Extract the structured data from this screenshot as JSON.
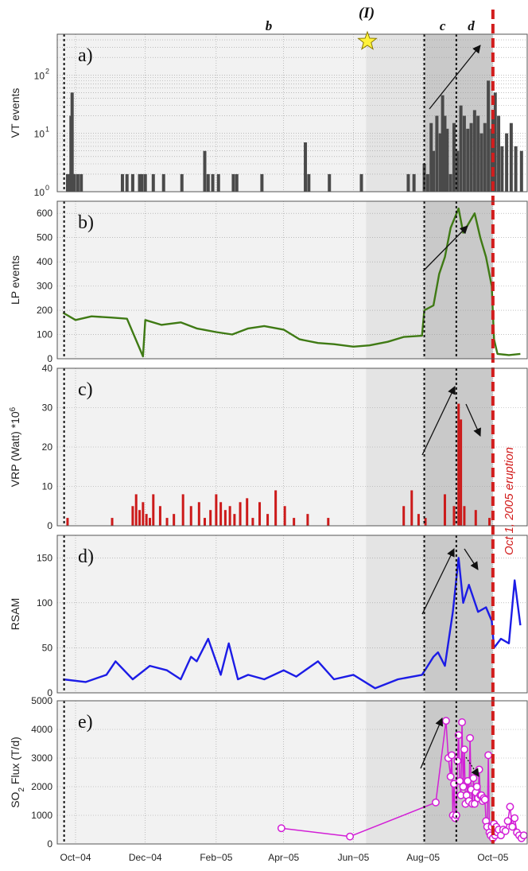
{
  "colors": {
    "vt": "#4a4a4a",
    "lp": "#3f7a14",
    "vrp": "#cc1a1a",
    "rsam": "#1c1ce6",
    "so2": "#d21fd6",
    "eruption": "#d21d1d",
    "shade_light": "#f2f2f2",
    "shade_mid": "#e4e4e4",
    "shade_dark": "#c9c9c9"
  },
  "annotations": {
    "phase_b": "b",
    "phase_c": "c",
    "phase_d": "d",
    "event_I": "(I)",
    "eruption_label": "Oct 1, 2005 eruption",
    "star_icon": "star-icon"
  },
  "chart_data": [
    {
      "type": "bar",
      "panel_label": "a)",
      "ylabel": "VT events",
      "yscale": "log",
      "ylim": [
        1,
        500
      ],
      "yticks": [
        "10",
        "10",
        "10"
      ],
      "ytick_exps": [
        "0",
        "1",
        "2"
      ],
      "x": [
        "2004-09-24",
        "2004-09-26",
        "2004-09-27",
        "2004-09-28",
        "2004-09-29",
        "2004-09-30",
        "2004-10-03",
        "2004-10-06",
        "2004-11-11",
        "2004-11-15",
        "2004-11-20",
        "2004-11-26",
        "2004-11-28",
        "2004-12-01",
        "2004-12-08",
        "2004-12-17",
        "2005-01-02",
        "2005-01-22",
        "2005-01-25",
        "2005-01-29",
        "2005-02-03",
        "2005-02-16",
        "2005-02-19",
        "2005-03-13",
        "2005-04-20",
        "2005-04-23",
        "2005-05-11",
        "2005-06-08",
        "2005-07-19",
        "2005-07-24",
        "2005-08-02",
        "2005-08-05",
        "2005-08-08",
        "2005-08-10",
        "2005-08-13",
        "2005-08-16",
        "2005-08-18",
        "2005-08-20",
        "2005-08-22",
        "2005-08-25",
        "2005-08-28",
        "2005-08-31",
        "2005-09-03",
        "2005-09-06",
        "2005-09-09",
        "2005-09-12",
        "2005-09-15",
        "2005-09-18",
        "2005-09-21",
        "2005-09-24",
        "2005-09-27",
        "2005-09-30",
        "2005-10-01",
        "2005-10-03",
        "2005-10-06",
        "2005-10-09",
        "2005-10-13",
        "2005-10-17",
        "2005-10-21",
        "2005-10-26"
      ],
      "values": [
        2,
        2,
        20,
        50,
        2,
        2,
        2,
        2,
        2,
        2,
        2,
        2,
        2,
        2,
        2,
        2,
        2,
        5,
        2,
        2,
        2,
        2,
        2,
        2,
        7,
        2,
        2,
        2,
        2,
        2,
        3,
        2,
        15,
        5,
        20,
        10,
        45,
        20,
        12,
        2,
        15,
        5,
        30,
        20,
        12,
        15,
        25,
        20,
        10,
        15,
        80,
        12,
        25,
        50,
        20,
        6,
        10,
        15,
        6,
        5
      ]
    },
    {
      "type": "line",
      "panel_label": "b)",
      "ylabel": "LP events",
      "ylim": [
        0,
        650
      ],
      "yticks": [
        "0",
        "100",
        "200",
        "300",
        "400",
        "500",
        "600"
      ],
      "x": [
        "2004-09-20",
        "2004-10-01",
        "2004-10-15",
        "2004-11-01",
        "2004-11-15",
        "2004-11-29",
        "2004-12-01",
        "2004-12-15",
        "2005-01-01",
        "2005-01-15",
        "2005-02-01",
        "2005-02-15",
        "2005-03-01",
        "2005-03-15",
        "2005-04-01",
        "2005-04-15",
        "2005-05-01",
        "2005-05-15",
        "2005-06-01",
        "2005-06-15",
        "2005-07-01",
        "2005-07-15",
        "2005-07-31",
        "2005-08-02",
        "2005-08-10",
        "2005-08-15",
        "2005-08-20",
        "2005-08-25",
        "2005-09-01",
        "2005-09-05",
        "2005-09-10",
        "2005-09-15",
        "2005-09-20",
        "2005-09-25",
        "2005-09-30",
        "2005-10-02",
        "2005-10-05",
        "2005-10-15",
        "2005-10-25"
      ],
      "values": [
        190,
        160,
        175,
        170,
        165,
        10,
        160,
        140,
        150,
        125,
        110,
        100,
        125,
        135,
        120,
        80,
        65,
        60,
        50,
        55,
        70,
        90,
        95,
        200,
        220,
        350,
        420,
        540,
        620,
        520,
        560,
        600,
        500,
        420,
        300,
        80,
        20,
        15,
        20
      ]
    },
    {
      "type": "bar",
      "panel_label": "c)",
      "ylabel": "VRP (Watt) *10",
      "ylabel_exp": "6",
      "ylim": [
        0,
        40
      ],
      "yticks": [
        "0",
        "10",
        "20",
        "30",
        "40"
      ],
      "x": [
        "2004-09-24",
        "2004-11-02",
        "2004-11-20",
        "2004-11-23",
        "2004-11-26",
        "2004-11-29",
        "2004-12-02",
        "2004-12-05",
        "2004-12-08",
        "2004-12-14",
        "2004-12-20",
        "2004-12-26",
        "2005-01-03",
        "2005-01-10",
        "2005-01-17",
        "2005-01-22",
        "2005-01-27",
        "2005-02-01",
        "2005-02-05",
        "2005-02-09",
        "2005-02-13",
        "2005-02-17",
        "2005-02-22",
        "2005-02-28",
        "2005-03-05",
        "2005-03-11",
        "2005-03-18",
        "2005-03-25",
        "2005-04-02",
        "2005-04-10",
        "2005-04-22",
        "2005-05-10",
        "2005-07-15",
        "2005-07-22",
        "2005-07-28",
        "2005-08-03",
        "2005-08-20",
        "2005-08-28",
        "2005-09-01",
        "2005-09-03",
        "2005-09-06",
        "2005-09-16",
        "2005-09-28"
      ],
      "values": [
        2,
        2,
        5,
        8,
        4,
        6,
        3,
        2,
        8,
        5,
        2,
        3,
        8,
        5,
        6,
        2,
        4,
        8,
        6,
        4,
        5,
        3,
        6,
        7,
        2,
        6,
        3,
        9,
        5,
        2,
        3,
        2,
        5,
        9,
        3,
        2,
        8,
        5,
        31,
        27,
        5,
        4,
        2
      ]
    },
    {
      "type": "line",
      "panel_label": "d)",
      "ylabel": "RSAM",
      "ylim": [
        0,
        175
      ],
      "yticks": [
        "0",
        "50",
        "100",
        "150"
      ],
      "x": [
        "2004-09-20",
        "2004-10-10",
        "2004-10-28",
        "2004-11-05",
        "2004-11-20",
        "2004-12-05",
        "2004-12-20",
        "2005-01-01",
        "2005-01-10",
        "2005-01-15",
        "2005-01-25",
        "2005-02-05",
        "2005-02-12",
        "2005-02-20",
        "2005-03-01",
        "2005-03-15",
        "2005-04-01",
        "2005-04-12",
        "2005-05-01",
        "2005-05-15",
        "2005-06-01",
        "2005-06-20",
        "2005-07-10",
        "2005-07-31",
        "2005-08-05",
        "2005-08-10",
        "2005-08-14",
        "2005-08-20",
        "2005-08-27",
        "2005-09-01",
        "2005-09-05",
        "2005-09-10",
        "2005-09-18",
        "2005-09-25",
        "2005-09-30",
        "2005-10-02",
        "2005-10-08",
        "2005-10-15",
        "2005-10-20",
        "2005-10-25"
      ],
      "values": [
        15,
        12,
        20,
        35,
        15,
        30,
        25,
        15,
        40,
        35,
        60,
        20,
        55,
        15,
        20,
        15,
        25,
        18,
        35,
        15,
        20,
        5,
        15,
        20,
        30,
        40,
        45,
        30,
        90,
        150,
        100,
        120,
        90,
        95,
        80,
        50,
        60,
        55,
        125,
        75
      ]
    },
    {
      "type": "scatter",
      "panel_label": "e)",
      "ylabel": "SO",
      "ylabel_sub": "2",
      "ylabel_rest": " Flux (T/d)",
      "ylim": [
        0,
        5000
      ],
      "yticks": [
        "0",
        "1000",
        "2000",
        "3000",
        "4000",
        "5000"
      ],
      "x": [
        "2005-03-30",
        "2005-05-29",
        "2005-08-12",
        "2005-08-21",
        "2005-08-23",
        "2005-08-25",
        "2005-08-26",
        "2005-08-27",
        "2005-08-28",
        "2005-08-29",
        "2005-08-30",
        "2005-08-31",
        "2005-09-01",
        "2005-09-02",
        "2005-09-03",
        "2005-09-04",
        "2005-09-05",
        "2005-09-06",
        "2005-09-07",
        "2005-09-08",
        "2005-09-09",
        "2005-09-10",
        "2005-09-11",
        "2005-09-12",
        "2005-09-13",
        "2005-09-14",
        "2005-09-15",
        "2005-09-16",
        "2005-09-17",
        "2005-09-18",
        "2005-09-19",
        "2005-09-20",
        "2005-09-21",
        "2005-09-22",
        "2005-09-23",
        "2005-09-24",
        "2005-09-25",
        "2005-09-26",
        "2005-09-27",
        "2005-09-28",
        "2005-09-29",
        "2005-09-30",
        "2005-10-01",
        "2005-10-02",
        "2005-10-03",
        "2005-10-04",
        "2005-10-05",
        "2005-10-06",
        "2005-10-08",
        "2005-10-10",
        "2005-10-12",
        "2005-10-14",
        "2005-10-16",
        "2005-10-18",
        "2005-10-20",
        "2005-10-22",
        "2005-10-24",
        "2005-10-26",
        "2005-10-28"
      ],
      "values": [
        550,
        260,
        1450,
        4300,
        3000,
        2350,
        3100,
        1000,
        2100,
        900,
        1000,
        2900,
        3800,
        2200,
        1700,
        4250,
        2000,
        3300,
        1400,
        1700,
        2200,
        1500,
        3700,
        1900,
        1400,
        2300,
        1400,
        1800,
        2000,
        1600,
        2600,
        1700,
        1700,
        1500,
        1600,
        1550,
        800,
        600,
        3100,
        400,
        300,
        600,
        200,
        700,
        300,
        600,
        400,
        500,
        300,
        500,
        450,
        800,
        1300,
        600,
        900,
        400,
        300,
        200,
        300
      ]
    }
  ],
  "x_axis": {
    "ticks": [
      "Oct−04",
      "Dec−04",
      "Feb−05",
      "Apr−05",
      "Jun−05",
      "Aug−05",
      "Oct−05"
    ],
    "range": [
      "2004-09-15",
      "2005-10-31"
    ]
  }
}
